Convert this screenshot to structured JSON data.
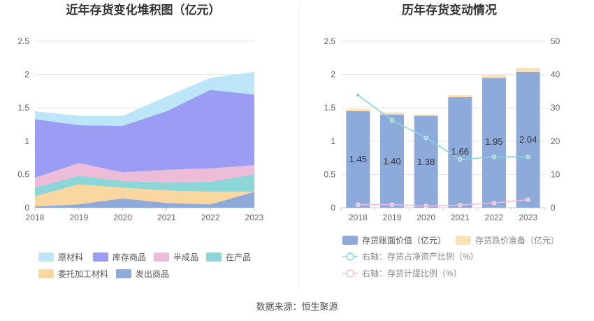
{
  "left_chart": {
    "title": "近年存货变化堆积图（亿元）",
    "years": [
      "2018",
      "2019",
      "2020",
      "2021",
      "2022",
      "2023"
    ],
    "yticks": [
      "0",
      "0.5",
      "1",
      "1.5",
      "2",
      "2.5"
    ]
  },
  "right_chart": {
    "title": "历年存货变动情况",
    "years": [
      "2018",
      "2019",
      "2020",
      "2021",
      "2022",
      "2023"
    ],
    "yticks_left": [
      "0",
      "0.5",
      "1",
      "1.5",
      "2",
      "2.5"
    ],
    "yticks_right": [
      "0",
      "10",
      "20",
      "30",
      "40",
      "50"
    ]
  },
  "footer": {
    "source": "数据来源：恒生聚源"
  },
  "chart_data": [
    {
      "type": "area",
      "stacked": true,
      "title": "近年存货变化堆积图（亿元）",
      "x": [
        "2018",
        "2019",
        "2020",
        "2021",
        "2022",
        "2023"
      ],
      "ylim": [
        0,
        2.5
      ],
      "grid": true,
      "legend_position": "bottom",
      "series": [
        {
          "name": "发出商品",
          "color": "#8eaadb",
          "values": [
            0.02,
            0.05,
            0.14,
            0.07,
            0.05,
            0.24
          ]
        },
        {
          "name": "委托加工材料",
          "color": "#fad6a0",
          "values": [
            0.15,
            0.3,
            0.16,
            0.19,
            0.19,
            0.0
          ]
        },
        {
          "name": "在产品",
          "color": "#8dd6d8",
          "values": [
            0.13,
            0.13,
            0.1,
            0.12,
            0.15,
            0.26
          ]
        },
        {
          "name": "半成品",
          "color": "#ecbcd8",
          "values": [
            0.15,
            0.19,
            0.13,
            0.19,
            0.2,
            0.14
          ]
        },
        {
          "name": "库存商品",
          "color": "#9b9cf3",
          "values": [
            0.88,
            0.57,
            0.7,
            0.88,
            1.18,
            1.06
          ]
        },
        {
          "name": "原材料",
          "color": "#bde5f8",
          "values": [
            0.12,
            0.14,
            0.15,
            0.22,
            0.18,
            0.34
          ]
        }
      ],
      "legend_order": [
        "原材料",
        "库存商品",
        "半成品",
        "在产品",
        "委托加工材料",
        "发出商品"
      ]
    },
    {
      "type": "bar",
      "title": "历年存货变动情况",
      "categories": [
        "2018",
        "2019",
        "2020",
        "2021",
        "2022",
        "2023"
      ],
      "ylim": [
        0,
        2.5
      ],
      "y2lim": [
        0,
        50
      ],
      "legend_position": "bottom",
      "series": [
        {
          "name": "存货账面价值（亿元）",
          "kind": "bar",
          "stack": "a",
          "color": "#8eaadb",
          "values": [
            1.45,
            1.4,
            1.38,
            1.66,
            1.95,
            2.04
          ],
          "labels": [
            "1.45",
            "1.40",
            "1.38",
            "1.66",
            "1.95",
            "2.04"
          ]
        },
        {
          "name": "存货跌价准备（亿元）",
          "kind": "bar",
          "stack": "a",
          "color": "#fbe2b6",
          "values": [
            0.03,
            0.03,
            0.02,
            0.03,
            0.04,
            0.06
          ]
        },
        {
          "name": "右轴：存货占净资产比例（%）",
          "kind": "line",
          "axis": "right",
          "color": "#86d4d8",
          "values": [
            33.8,
            26.3,
            21.0,
            14.5,
            15.3,
            15.3
          ]
        },
        {
          "name": "右轴：存货计提比例（%）",
          "kind": "line",
          "axis": "right",
          "color": "#f2b8dc",
          "values": [
            0.9,
            0.9,
            0.5,
            0.8,
            1.4,
            2.4
          ]
        }
      ]
    }
  ]
}
